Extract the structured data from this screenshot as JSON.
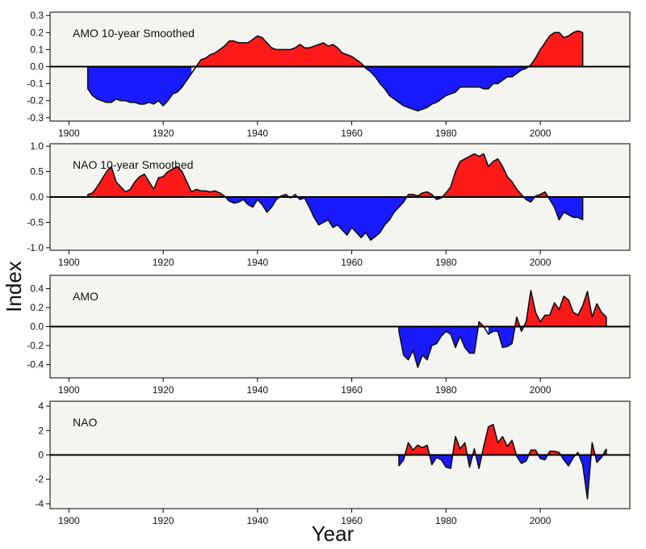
{
  "figure": {
    "ylabel": "Index",
    "xlabel": "Year"
  },
  "colors": {
    "positive": "#ff1a1a",
    "negative": "#1a1aff",
    "panel_bg": "#f4f4f0",
    "line": "#111111"
  },
  "chart_data": [
    {
      "type": "area",
      "title": "AMO 10-year Smoothed",
      "xlim": [
        1896,
        2019
      ],
      "ylim": [
        -0.32,
        0.32
      ],
      "xticks": [
        1900,
        1920,
        1940,
        1960,
        1980,
        2000
      ],
      "yticks": [
        -0.3,
        -0.2,
        -0.1,
        0.0,
        0.1,
        0.2,
        0.3
      ],
      "ytick_labels": [
        "-0.3",
        "-0.2",
        "-0.1",
        "0.0",
        "0.1",
        "0.2",
        "0.3"
      ],
      "baseline": 0,
      "x": [
        1904,
        1905,
        1906,
        1907,
        1908,
        1909,
        1910,
        1911,
        1912,
        1913,
        1914,
        1915,
        1916,
        1917,
        1918,
        1919,
        1920,
        1921,
        1922,
        1923,
        1924,
        1925,
        1926,
        1927,
        1928,
        1929,
        1930,
        1931,
        1932,
        1933,
        1934,
        1935,
        1936,
        1937,
        1938,
        1939,
        1940,
        1941,
        1942,
        1943,
        1944,
        1945,
        1946,
        1947,
        1948,
        1949,
        1950,
        1951,
        1952,
        1953,
        1954,
        1955,
        1956,
        1957,
        1958,
        1959,
        1960,
        1961,
        1962,
        1963,
        1964,
        1965,
        1966,
        1967,
        1968,
        1969,
        1970,
        1971,
        1972,
        1973,
        1974,
        1975,
        1976,
        1977,
        1978,
        1979,
        1980,
        1981,
        1982,
        1983,
        1984,
        1985,
        1986,
        1987,
        1988,
        1989,
        1990,
        1991,
        1992,
        1993,
        1994,
        1995,
        1996,
        1997,
        1998,
        1999,
        2000,
        2001,
        2002,
        2003,
        2004,
        2005,
        2006,
        2007,
        2008,
        2009
      ],
      "values": [
        -0.13,
        -0.17,
        -0.19,
        -0.2,
        -0.21,
        -0.21,
        -0.19,
        -0.2,
        -0.2,
        -0.21,
        -0.21,
        -0.22,
        -0.22,
        -0.21,
        -0.22,
        -0.2,
        -0.23,
        -0.2,
        -0.16,
        -0.15,
        -0.12,
        -0.08,
        -0.04,
        0.0,
        0.04,
        0.05,
        0.07,
        0.08,
        0.1,
        0.12,
        0.15,
        0.15,
        0.14,
        0.14,
        0.14,
        0.16,
        0.18,
        0.17,
        0.14,
        0.11,
        0.1,
        0.1,
        0.1,
        0.1,
        0.11,
        0.13,
        0.11,
        0.11,
        0.12,
        0.13,
        0.14,
        0.12,
        0.13,
        0.11,
        0.08,
        0.07,
        0.06,
        0.04,
        0.02,
        -0.01,
        -0.03,
        -0.06,
        -0.1,
        -0.13,
        -0.17,
        -0.19,
        -0.21,
        -0.23,
        -0.24,
        -0.25,
        -0.26,
        -0.25,
        -0.24,
        -0.22,
        -0.21,
        -0.19,
        -0.17,
        -0.16,
        -0.15,
        -0.12,
        -0.12,
        -0.12,
        -0.12,
        -0.12,
        -0.13,
        -0.13,
        -0.1,
        -0.1,
        -0.08,
        -0.06,
        -0.06,
        -0.04,
        -0.02,
        -0.01,
        0.01,
        0.05,
        0.1,
        0.14,
        0.18,
        0.2,
        0.2,
        0.17,
        0.18,
        0.2,
        0.21,
        0.2
      ]
    },
    {
      "type": "area",
      "title": "NAO 10-year Smoothed",
      "xlim": [
        1896,
        2019
      ],
      "ylim": [
        -1.05,
        1.05
      ],
      "xticks": [
        1900,
        1920,
        1940,
        1960,
        1980,
        2000
      ],
      "yticks": [
        -1.0,
        -0.5,
        0.0,
        0.5,
        1.0
      ],
      "ytick_labels": [
        "-1.0",
        "-0.5",
        "0.0",
        "0.5",
        "1.0"
      ],
      "baseline": 0,
      "x": [
        1904,
        1905,
        1906,
        1907,
        1908,
        1909,
        1910,
        1911,
        1912,
        1913,
        1914,
        1915,
        1916,
        1917,
        1918,
        1919,
        1920,
        1921,
        1922,
        1923,
        1924,
        1925,
        1926,
        1927,
        1928,
        1929,
        1930,
        1931,
        1932,
        1933,
        1934,
        1935,
        1936,
        1937,
        1938,
        1939,
        1940,
        1941,
        1942,
        1943,
        1944,
        1945,
        1946,
        1947,
        1948,
        1949,
        1950,
        1951,
        1952,
        1953,
        1954,
        1955,
        1956,
        1957,
        1958,
        1959,
        1960,
        1961,
        1962,
        1963,
        1964,
        1965,
        1966,
        1967,
        1968,
        1969,
        1970,
        1971,
        1972,
        1973,
        1974,
        1975,
        1976,
        1977,
        1978,
        1979,
        1980,
        1981,
        1982,
        1983,
        1984,
        1985,
        1986,
        1987,
        1988,
        1989,
        1990,
        1991,
        1992,
        1993,
        1994,
        1995,
        1996,
        1997,
        1998,
        1999,
        2000,
        2001,
        2002,
        2003,
        2004,
        2005,
        2006,
        2007,
        2008,
        2009
      ],
      "values": [
        0.05,
        0.08,
        0.2,
        0.35,
        0.5,
        0.6,
        0.3,
        0.2,
        0.1,
        0.15,
        0.3,
        0.4,
        0.45,
        0.3,
        0.15,
        0.38,
        0.4,
        0.5,
        0.55,
        0.6,
        0.5,
        0.3,
        0.1,
        0.15,
        0.12,
        0.12,
        0.1,
        0.12,
        0.08,
        0.02,
        -0.08,
        -0.12,
        -0.1,
        -0.05,
        -0.15,
        -0.2,
        -0.05,
        -0.15,
        -0.3,
        -0.2,
        -0.05,
        0.02,
        0.05,
        -0.02,
        0.05,
        -0.05,
        -0.02,
        -0.2,
        -0.4,
        -0.55,
        -0.5,
        -0.45,
        -0.6,
        -0.55,
        -0.65,
        -0.75,
        -0.6,
        -0.7,
        -0.8,
        -0.7,
        -0.85,
        -0.78,
        -0.7,
        -0.55,
        -0.45,
        -0.3,
        -0.2,
        -0.1,
        0.05,
        0.05,
        0.02,
        0.08,
        0.1,
        0.05,
        -0.05,
        -0.02,
        0.08,
        0.2,
        0.5,
        0.7,
        0.75,
        0.8,
        0.85,
        0.8,
        0.85,
        0.6,
        0.7,
        0.75,
        0.6,
        0.4,
        0.3,
        0.15,
        0.05,
        -0.05,
        -0.1,
        0.02,
        0.05,
        0.1,
        -0.05,
        -0.2,
        -0.45,
        -0.3,
        -0.35,
        -0.4,
        -0.4,
        -0.45
      ]
    },
    {
      "type": "area",
      "title": "AMO",
      "xlim": [
        1896,
        2019
      ],
      "ylim": [
        -0.54,
        0.54
      ],
      "xticks": [
        1900,
        1920,
        1940,
        1960,
        1980,
        2000
      ],
      "yticks": [
        -0.4,
        -0.2,
        0.0,
        0.2,
        0.4
      ],
      "ytick_labels": [
        "-0.4",
        "-0.2",
        "0.0",
        "0.2",
        "0.4"
      ],
      "baseline": 0,
      "x": [
        1970,
        1971,
        1972,
        1973,
        1974,
        1975,
        1976,
        1977,
        1978,
        1979,
        1980,
        1981,
        1982,
        1983,
        1984,
        1985,
        1986,
        1987,
        1988,
        1989,
        1990,
        1991,
        1992,
        1993,
        1994,
        1995,
        1996,
        1997,
        1998,
        1999,
        2000,
        2001,
        2002,
        2003,
        2004,
        2005,
        2006,
        2007,
        2008,
        2009,
        2010,
        2011,
        2012,
        2013,
        2014
      ],
      "values": [
        -0.05,
        -0.3,
        -0.35,
        -0.25,
        -0.43,
        -0.3,
        -0.35,
        -0.2,
        -0.18,
        -0.1,
        -0.05,
        -0.08,
        -0.22,
        -0.1,
        -0.22,
        -0.28,
        -0.28,
        0.05,
        0.0,
        -0.08,
        -0.05,
        -0.05,
        -0.22,
        -0.21,
        -0.18,
        0.1,
        -0.05,
        0.05,
        0.38,
        0.15,
        0.05,
        0.12,
        0.12,
        0.25,
        0.18,
        0.32,
        0.28,
        0.15,
        0.12,
        0.22,
        0.37,
        0.1,
        0.24,
        0.15,
        0.1
      ]
    },
    {
      "type": "area",
      "title": "NAO",
      "xlim": [
        1896,
        2019
      ],
      "ylim": [
        -4.4,
        4.4
      ],
      "xticks": [
        1900,
        1920,
        1940,
        1960,
        1980,
        2000
      ],
      "yticks": [
        -4,
        -2,
        0,
        2,
        4
      ],
      "ytick_labels": [
        "-4",
        "-2",
        "0",
        "2",
        "4"
      ],
      "baseline": 0,
      "x": [
        1970,
        1971,
        1972,
        1973,
        1974,
        1975,
        1976,
        1977,
        1978,
        1979,
        1980,
        1981,
        1982,
        1983,
        1984,
        1985,
        1986,
        1987,
        1988,
        1989,
        1990,
        1991,
        1992,
        1993,
        1994,
        1995,
        1996,
        1997,
        1998,
        1999,
        2000,
        2001,
        2002,
        2003,
        2004,
        2005,
        2006,
        2007,
        2008,
        2009,
        2010,
        2011,
        2012,
        2013,
        2014
      ],
      "values": [
        -0.9,
        -0.4,
        1.0,
        0.4,
        0.8,
        0.6,
        0.8,
        -0.8,
        -0.2,
        -0.4,
        -1.0,
        -1.1,
        1.5,
        0.5,
        1.0,
        -1.0,
        0.5,
        -1.1,
        0.7,
        2.3,
        2.5,
        1.0,
        1.5,
        0.7,
        1.2,
        -0.1,
        -0.7,
        -0.5,
        0.4,
        0.4,
        -0.3,
        -0.4,
        0.3,
        0.3,
        0.2,
        -0.4,
        -0.9,
        -0.2,
        0.2,
        -0.8,
        -3.6,
        1.0,
        -0.6,
        -0.2,
        0.5
      ]
    }
  ]
}
